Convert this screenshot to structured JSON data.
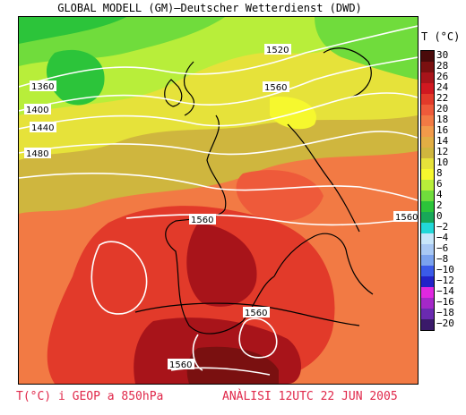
{
  "header": {
    "title": "GLOBAL MODELL (GM)–Deutscher Wetterdienst (DWD)"
  },
  "legend": {
    "title": "T (°C)",
    "items": [
      {
        "label": "30",
        "color": "#4a0a0a"
      },
      {
        "label": "28",
        "color": "#7a1010"
      },
      {
        "label": "26",
        "color": "#a8141a"
      },
      {
        "label": "24",
        "color": "#d01820"
      },
      {
        "label": "22",
        "color": "#e23a2a"
      },
      {
        "label": "20",
        "color": "#ee5a3a"
      },
      {
        "label": "18",
        "color": "#f27a44"
      },
      {
        "label": "16",
        "color": "#f29a4a"
      },
      {
        "label": "14",
        "color": "#e2ae44"
      },
      {
        "label": "12",
        "color": "#cfb63e"
      },
      {
        "label": "10",
        "color": "#e6e23a"
      },
      {
        "label": "8",
        "color": "#f6f82e"
      },
      {
        "label": "6",
        "color": "#b8ee3a"
      },
      {
        "label": "4",
        "color": "#70dc3c"
      },
      {
        "label": "2",
        "color": "#2cc43a"
      },
      {
        "label": "0",
        "color": "#18a858"
      },
      {
        "label": "−2",
        "color": "#22d8d8"
      },
      {
        "label": "−4",
        "color": "#c8e6fa"
      },
      {
        "label": "−6",
        "color": "#a8c8f4"
      },
      {
        "label": "−8",
        "color": "#7aa2ee"
      },
      {
        "label": "−10",
        "color": "#3a5ae8"
      },
      {
        "label": "−12",
        "color": "#2222c8"
      },
      {
        "label": "−14",
        "color": "#e028e0"
      },
      {
        "label": "−16",
        "color": "#a428c8"
      },
      {
        "label": "−18",
        "color": "#6a2ab0"
      },
      {
        "label": "−20",
        "color": "#3a1a6a"
      }
    ]
  },
  "isolines": [
    {
      "label": "1520"
    },
    {
      "label": "1560"
    },
    {
      "label": "1360"
    },
    {
      "label": "1400"
    },
    {
      "label": "1440"
    },
    {
      "label": "1480"
    },
    {
      "label": "1560"
    },
    {
      "label": "1560"
    },
    {
      "label": "1560"
    },
    {
      "label": "1560"
    }
  ],
  "footer": {
    "left": "T(°C) i GEOP a 850hPa",
    "right": "ANÀLISI 12UTC 22 JUN 2005"
  }
}
